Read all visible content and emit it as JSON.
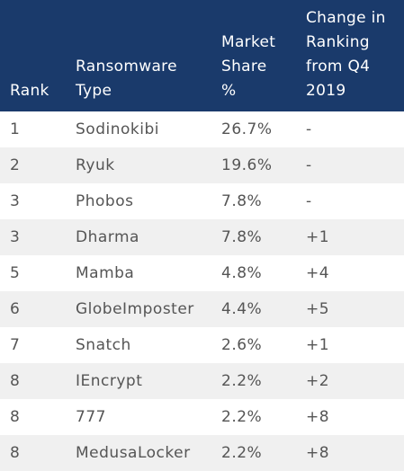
{
  "headers": {
    "rank": [
      "Rank"
    ],
    "type": [
      "Ransomware",
      "Type"
    ],
    "share": [
      "Market",
      "Share",
      "%"
    ],
    "change": [
      "Change in",
      "Ranking",
      "from Q4",
      "2019"
    ]
  },
  "rows": [
    {
      "rank": "1",
      "type": "Sodinokibi",
      "share": "26.7%",
      "change": "-"
    },
    {
      "rank": "2",
      "type": "Ryuk",
      "share": "19.6%",
      "change": "-"
    },
    {
      "rank": "3",
      "type": "Phobos",
      "share": "7.8%",
      "change": "-"
    },
    {
      "rank": "3",
      "type": "Dharma",
      "share": "7.8%",
      "change": "+1"
    },
    {
      "rank": "5",
      "type": "Mamba",
      "share": "4.8%",
      "change": "+4"
    },
    {
      "rank": "6",
      "type": "GlobeImposter",
      "share": "4.4%",
      "change": "+5"
    },
    {
      "rank": "7",
      "type": "Snatch",
      "share": "2.6%",
      "change": "+1"
    },
    {
      "rank": "8",
      "type": "IEncrypt",
      "share": "2.2%",
      "change": "+2"
    },
    {
      "rank": "8",
      "type": "777",
      "share": "2.2%",
      "change": "+8"
    },
    {
      "rank": "8",
      "type": "MedusaLocker",
      "share": "2.2%",
      "change": "+8"
    }
  ],
  "colors": {
    "header_bg": "#1a3a6b",
    "header_text": "#ffffff",
    "body_text": "#555555",
    "stripe": "#f0f0f0"
  }
}
